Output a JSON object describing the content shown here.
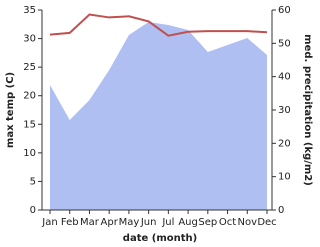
{
  "chart_data": {
    "type": "line-area",
    "x_label": "date (month)",
    "y_label": "max temp (C)",
    "y2_label": "med. precipitation (kg/m2)",
    "categories": [
      "Jan",
      "Feb",
      "Mar",
      "Apr",
      "May",
      "Jun",
      "Jul",
      "Aug",
      "Sep",
      "Oct",
      "Nov",
      "Dec"
    ],
    "series": [
      {
        "name": "max temp",
        "color": "#c0504d",
        "values": [
          30.7,
          31.0,
          34.2,
          33.7,
          33.9,
          33.0,
          30.5,
          31.2,
          31.3,
          31.3,
          31.3,
          31.1
        ]
      },
      {
        "name": "med. precipitation",
        "color": "#b0bff2",
        "axis": "y2",
        "values": [
          37.5,
          27,
          33,
          42,
          52.5,
          56.4,
          55.5,
          54,
          47.4,
          49.5,
          51.6,
          46.5
        ]
      }
    ],
    "ylim": [
      0,
      35
    ],
    "yticks": [
      0,
      5,
      10,
      15,
      20,
      25,
      30,
      35
    ],
    "y2lim": [
      0,
      60
    ],
    "y2ticks": [
      0,
      10,
      20,
      30,
      40,
      50,
      60
    ]
  }
}
